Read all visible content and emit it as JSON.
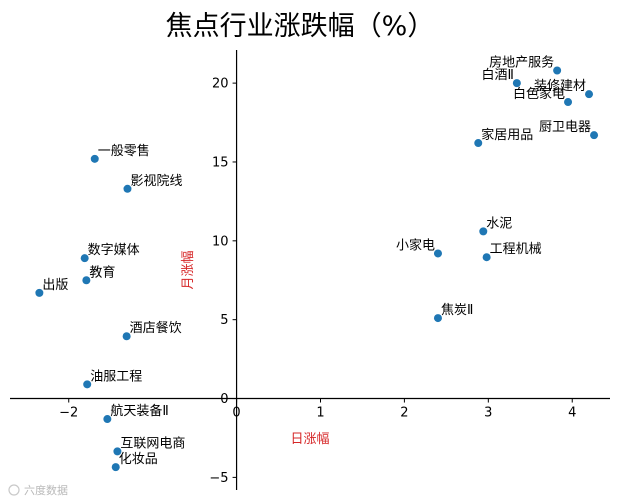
{
  "chart_data": {
    "type": "scatter",
    "title": "焦点行业涨跌幅（%）",
    "xlabel": "日涨幅",
    "ylabel": "月涨幅",
    "xlim": [
      -2.7,
      4.45
    ],
    "ylim": [
      -5.8,
      22.1
    ],
    "xticks": [
      -2,
      0,
      1,
      2,
      3,
      4
    ],
    "xtick_labels": [
      "−2",
      "0",
      "1",
      "2",
      "3",
      "4"
    ],
    "yticks": [
      -5,
      0,
      5,
      10,
      15,
      20
    ],
    "ytick_labels": [
      "−5",
      "0",
      "5",
      "10",
      "15",
      "20"
    ],
    "marker_color": "#1f77b4",
    "label_color": "#d62728",
    "grid": false,
    "points": [
      {
        "label": "房地产服务",
        "x": 3.82,
        "y": 20.8,
        "anchor": "end"
      },
      {
        "label": "白酒Ⅱ",
        "x": 3.34,
        "y": 20.0,
        "anchor": "end"
      },
      {
        "label": "装修建材",
        "x": 4.2,
        "y": 19.3,
        "anchor": "end"
      },
      {
        "label": "白色家电",
        "x": 3.95,
        "y": 18.8,
        "anchor": "end"
      },
      {
        "label": "厨卫电器",
        "x": 4.26,
        "y": 16.7,
        "anchor": "end"
      },
      {
        "label": "家居用品",
        "x": 2.88,
        "y": 16.2,
        "anchor": "start"
      },
      {
        "label": "一般零售",
        "x": -1.69,
        "y": 15.2,
        "anchor": "start"
      },
      {
        "label": "影视院线",
        "x": -1.3,
        "y": 13.3,
        "anchor": "start"
      },
      {
        "label": "水泥",
        "x": 2.94,
        "y": 10.6,
        "anchor": "start"
      },
      {
        "label": "小家电",
        "x": 2.4,
        "y": 9.2,
        "anchor": "end"
      },
      {
        "label": "工程机械",
        "x": 2.98,
        "y": 8.96,
        "anchor": "start"
      },
      {
        "label": "数字媒体",
        "x": -1.81,
        "y": 8.9,
        "anchor": "start"
      },
      {
        "label": "教育",
        "x": -1.79,
        "y": 7.5,
        "anchor": "start"
      },
      {
        "label": "出版",
        "x": -2.35,
        "y": 6.7,
        "anchor": "start"
      },
      {
        "label": "焦炭Ⅱ",
        "x": 2.4,
        "y": 5.1,
        "anchor": "start"
      },
      {
        "label": "酒店餐饮",
        "x": -1.31,
        "y": 3.95,
        "anchor": "start"
      },
      {
        "label": "油服工程",
        "x": -1.78,
        "y": 0.9,
        "anchor": "start"
      },
      {
        "label": "航天装备Ⅱ",
        "x": -1.54,
        "y": -1.3,
        "anchor": "start"
      },
      {
        "label": "互联网电商",
        "x": -1.42,
        "y": -3.35,
        "anchor": "start"
      },
      {
        "label": "化妆品",
        "x": -1.44,
        "y": -4.35,
        "anchor": "start"
      }
    ]
  },
  "watermark": "六度数据"
}
